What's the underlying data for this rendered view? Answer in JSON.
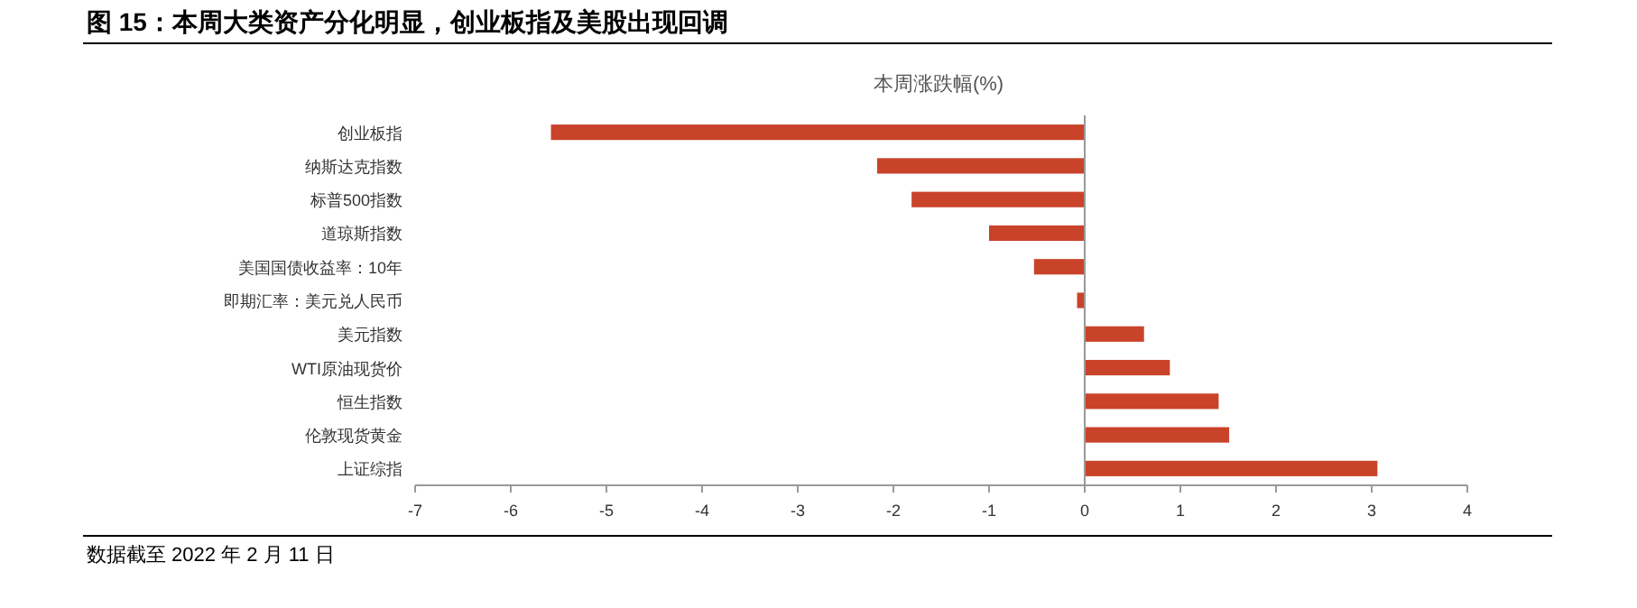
{
  "chart_data": {
    "type": "bar",
    "orientation": "horizontal",
    "title": "图 15：本周大类资产分化明显，创业板指及美股出现回调",
    "subtitle": "本周涨跌幅(%)",
    "categories": [
      "创业板指",
      "纳斯达克指数",
      "标普500指数",
      "道琼斯指数",
      "美国国债收益率：10年",
      "即期汇率：美元兑人民币",
      "美元指数",
      "WTI原油现货价",
      "恒生指数",
      "伦敦现货黄金",
      "上证综指"
    ],
    "values": [
      -5.58,
      -2.17,
      -1.81,
      -1.0,
      -0.53,
      -0.08,
      0.62,
      0.89,
      1.4,
      1.51,
      3.06
    ],
    "color": "#c9432a",
    "xlim": [
      -7,
      4
    ],
    "xticks": [
      -7,
      -6,
      -5,
      -4,
      -3,
      -2,
      -1,
      0,
      1,
      2,
      3,
      4
    ],
    "annotations": [
      "数据截至 2022 年 2 月 11 日"
    ]
  }
}
